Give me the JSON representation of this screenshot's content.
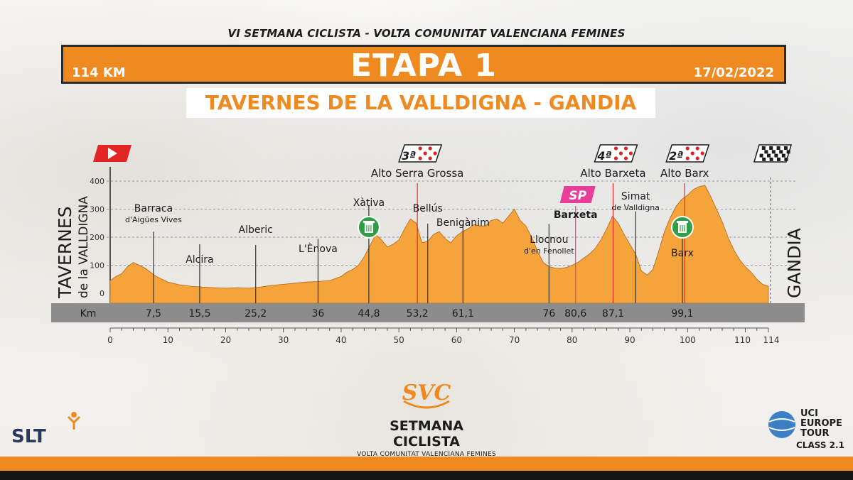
{
  "event_title": "VI SETMANA CICLISTA - VOLTA COMUNITAT VALENCIANA FEMINES",
  "banner": {
    "distance": "114 KM",
    "stage": "ETAPA 1",
    "date": "17/02/2022"
  },
  "route": "TAVERNES DE LA VALLDIGNA - GANDIA",
  "colors": {
    "orange": "#ef8a21",
    "profile_fill": "#f4a43a",
    "sprint_pink": "#e83e9a",
    "climb_line": "#e02b2b",
    "feed_green": "#2f9e44",
    "start_red": "#e32525"
  },
  "chart_data": {
    "type": "area",
    "title": "ETAPA 1",
    "xlabel": "Km",
    "ylabel": "",
    "xlim": [
      0,
      114
    ],
    "ylim": [
      0,
      400
    ],
    "yticks": [
      "0",
      "100",
      "200",
      "300",
      "400"
    ],
    "xticks": [
      "0",
      "10",
      "20",
      "30",
      "40",
      "50",
      "60",
      "70",
      "80",
      "90",
      "100",
      "110",
      "114"
    ],
    "grid": true,
    "profile": {
      "km": [
        0,
        1,
        2,
        3,
        4,
        5,
        6,
        7,
        8,
        9,
        10,
        12,
        14,
        16,
        18,
        20,
        22,
        24,
        26,
        28,
        30,
        32,
        34,
        36,
        38,
        40,
        41,
        42,
        43,
        44,
        45,
        46,
        47,
        48,
        49,
        50,
        51,
        52,
        53,
        54,
        55,
        56,
        57,
        58,
        59,
        60,
        61,
        62,
        63,
        64,
        65,
        66,
        67,
        68,
        69,
        70,
        71,
        72,
        73,
        74,
        75,
        76,
        77,
        78,
        79,
        80,
        81,
        82,
        83,
        84,
        85,
        86,
        87,
        88,
        89,
        90,
        91,
        92,
        93,
        94,
        95,
        96,
        97,
        98,
        99,
        100,
        101,
        102,
        103,
        104,
        105,
        106,
        107,
        108,
        109,
        110,
        111,
        112,
        113,
        114
      ],
      "elev": [
        45,
        60,
        70,
        95,
        110,
        100,
        90,
        75,
        60,
        50,
        40,
        30,
        25,
        22,
        20,
        18,
        20,
        18,
        22,
        28,
        32,
        36,
        40,
        42,
        45,
        60,
        75,
        85,
        100,
        130,
        170,
        210,
        190,
        165,
        175,
        190,
        230,
        265,
        250,
        180,
        185,
        210,
        220,
        195,
        180,
        205,
        220,
        230,
        245,
        240,
        240,
        260,
        265,
        250,
        275,
        300,
        260,
        240,
        200,
        150,
        110,
        95,
        90,
        88,
        92,
        100,
        110,
        125,
        140,
        160,
        190,
        230,
        275,
        250,
        210,
        175,
        140,
        80,
        65,
        85,
        150,
        220,
        270,
        310,
        335,
        350,
        370,
        380,
        385,
        345,
        300,
        255,
        200,
        155,
        120,
        95,
        75,
        50,
        32,
        25
      ]
    },
    "km_markers": [
      {
        "km": 7.5,
        "label": "7,5",
        "name": "Barraca",
        "subname": "d'Aigües Vives"
      },
      {
        "km": 15.5,
        "label": "15,5",
        "name": "Alcira",
        "subname": ""
      },
      {
        "km": 25.2,
        "label": "25,2",
        "name": "Alberic",
        "subname": ""
      },
      {
        "km": 36,
        "label": "36",
        "name": "L'Ènova",
        "subname": ""
      },
      {
        "km": 44.8,
        "label": "44,8",
        "name": "Xàtiva",
        "subname": ""
      },
      {
        "km": 53.2,
        "label": "53,2",
        "name": "Alto Serra Grossa",
        "subname": ""
      },
      {
        "km": 55,
        "label": "",
        "name": "Bellús",
        "subname": ""
      },
      {
        "km": 61.1,
        "label": "61,1",
        "name": "Benigànim",
        "subname": ""
      },
      {
        "km": 76,
        "label": "76",
        "name": "Llocnou",
        "subname": "d'en Fenollet"
      },
      {
        "km": 80.6,
        "label": "80,6",
        "name": "Barxeta",
        "subname": ""
      },
      {
        "km": 87.1,
        "label": "87,1",
        "name": "Alto Barxeta",
        "subname": ""
      },
      {
        "km": 91,
        "label": "",
        "name": "Simat",
        "subname": "de Valldigna"
      },
      {
        "km": 99.1,
        "label": "99,1",
        "name": "Barx",
        "subname": ""
      },
      {
        "km": 99.5,
        "label": "",
        "name": "Alto Barx",
        "subname": ""
      }
    ],
    "climbs": [
      {
        "km": 53.2,
        "category": "3ª",
        "name": "Alto Serra Grossa"
      },
      {
        "km": 87.1,
        "category": "4ª",
        "name": "Alto Barxeta"
      },
      {
        "km": 99.5,
        "category": "2ª",
        "name": "Alto Barx"
      }
    ],
    "sprint": {
      "km": 80.6,
      "label": "SP",
      "name": "Barxeta"
    },
    "feed_zones": [
      44.8,
      99.1
    ],
    "start": "TAVERNES de la VALLDIGNA",
    "start_line1": "TAVERNES",
    "start_line2": "de la VALLDIGNA",
    "finish": "GANDIA"
  },
  "brand": {
    "name": "SETMANA CICLISTA",
    "subtitle": "VOLTA COMUNITAT VALENCIANA FEMINES",
    "logo_text": "SVC"
  },
  "sponsors": {
    "slt": "SLT",
    "uci_line1": "UCI",
    "uci_line2": "EUROPE",
    "uci_line3": "TOUR",
    "uci_class": "CLASS 2.1"
  }
}
